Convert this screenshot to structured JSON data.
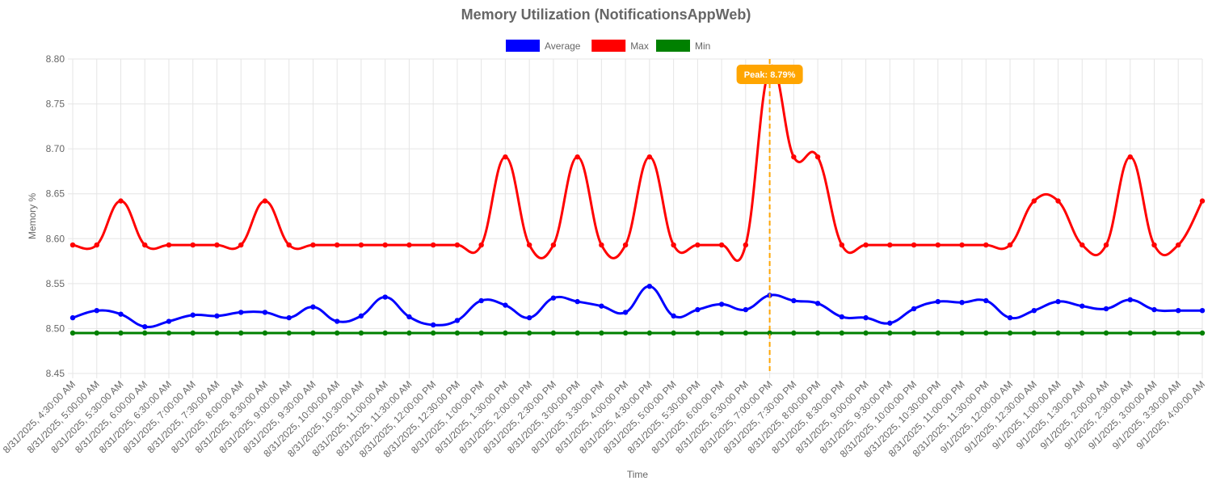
{
  "chart_data": {
    "type": "line",
    "title": "Memory Utilization (NotificationsAppWeb)",
    "xlabel": "Time",
    "ylabel": "Memory %",
    "ylim": [
      8.45,
      8.8
    ],
    "yticks": [
      "8.80",
      "8.75",
      "8.70",
      "8.65",
      "8.60",
      "8.55",
      "8.50",
      "8.45"
    ],
    "grid": true,
    "legend_position": "top",
    "categories": [
      "8/31/2025, 4:30:00 AM",
      "8/31/2025, 5:00:00 AM",
      "8/31/2025, 5:30:00 AM",
      "8/31/2025, 6:00:00 AM",
      "8/31/2025, 6:30:00 AM",
      "8/31/2025, 7:00:00 AM",
      "8/31/2025, 7:30:00 AM",
      "8/31/2025, 8:00:00 AM",
      "8/31/2025, 8:30:00 AM",
      "8/31/2025, 9:00:00 AM",
      "8/31/2025, 9:30:00 AM",
      "8/31/2025, 10:00:00 AM",
      "8/31/2025, 10:30:00 AM",
      "8/31/2025, 11:00:00 AM",
      "8/31/2025, 11:30:00 AM",
      "8/31/2025, 12:00:00 PM",
      "8/31/2025, 12:30:00 PM",
      "8/31/2025, 1:00:00 PM",
      "8/31/2025, 1:30:00 PM",
      "8/31/2025, 2:00:00 PM",
      "8/31/2025, 2:30:00 PM",
      "8/31/2025, 3:00:00 PM",
      "8/31/2025, 3:30:00 PM",
      "8/31/2025, 4:00:00 PM",
      "8/31/2025, 4:30:00 PM",
      "8/31/2025, 5:00:00 PM",
      "8/31/2025, 5:30:00 PM",
      "8/31/2025, 6:00:00 PM",
      "8/31/2025, 6:30:00 PM",
      "8/31/2025, 7:00:00 PM",
      "8/31/2025, 7:30:00 PM",
      "8/31/2025, 8:00:00 PM",
      "8/31/2025, 8:30:00 PM",
      "8/31/2025, 9:00:00 PM",
      "8/31/2025, 9:30:00 PM",
      "8/31/2025, 10:00:00 PM",
      "8/31/2025, 10:30:00 PM",
      "8/31/2025, 11:00:00 PM",
      "8/31/2025, 11:30:00 PM",
      "9/1/2025, 12:00:00 AM",
      "9/1/2025, 12:30:00 AM",
      "9/1/2025, 1:00:00 AM",
      "9/1/2025, 1:30:00 AM",
      "9/1/2025, 2:00:00 AM",
      "9/1/2025, 2:30:00 AM",
      "9/1/2025, 3:00:00 AM",
      "9/1/2025, 3:30:00 AM",
      "9/1/2025, 4:00:00 AM"
    ],
    "series": [
      {
        "name": "Average",
        "color": "#0000ff",
        "values": [
          8.512,
          8.52,
          8.516,
          8.502,
          8.508,
          8.515,
          8.514,
          8.518,
          8.518,
          8.512,
          8.524,
          8.508,
          8.514,
          8.535,
          8.513,
          8.504,
          8.509,
          8.531,
          8.526,
          8.512,
          8.534,
          8.53,
          8.525,
          8.518,
          8.547,
          8.514,
          8.521,
          8.527,
          8.521,
          8.537,
          8.531,
          8.528,
          8.513,
          8.512,
          8.506,
          8.522,
          8.53,
          8.529,
          8.531,
          8.512,
          8.52,
          8.53,
          8.525,
          8.522,
          8.532,
          8.521,
          8.52,
          8.52
        ]
      },
      {
        "name": "Max",
        "color": "#ff0000",
        "values": [
          8.593,
          8.593,
          8.642,
          8.593,
          8.593,
          8.593,
          8.593,
          8.593,
          8.642,
          8.593,
          8.593,
          8.593,
          8.593,
          8.593,
          8.593,
          8.593,
          8.593,
          8.593,
          8.691,
          8.593,
          8.593,
          8.691,
          8.593,
          8.593,
          8.691,
          8.593,
          8.593,
          8.593,
          8.593,
          8.79,
          8.691,
          8.691,
          8.593,
          8.593,
          8.593,
          8.593,
          8.593,
          8.593,
          8.593,
          8.593,
          8.642,
          8.642,
          8.593,
          8.593,
          8.691,
          8.593,
          8.593,
          8.642
        ]
      },
      {
        "name": "Min",
        "color": "#008000",
        "values": [
          8.495,
          8.495,
          8.495,
          8.495,
          8.495,
          8.495,
          8.495,
          8.495,
          8.495,
          8.495,
          8.495,
          8.495,
          8.495,
          8.495,
          8.495,
          8.495,
          8.495,
          8.495,
          8.495,
          8.495,
          8.495,
          8.495,
          8.495,
          8.495,
          8.495,
          8.495,
          8.495,
          8.495,
          8.495,
          8.495,
          8.495,
          8.495,
          8.495,
          8.495,
          8.495,
          8.495,
          8.495,
          8.495,
          8.495,
          8.495,
          8.495,
          8.495,
          8.495,
          8.495,
          8.495,
          8.495,
          8.495,
          8.495
        ]
      }
    ],
    "annotation": {
      "label": "Peak: 8.79%",
      "category_index": 29,
      "color": "#ffa500"
    }
  }
}
